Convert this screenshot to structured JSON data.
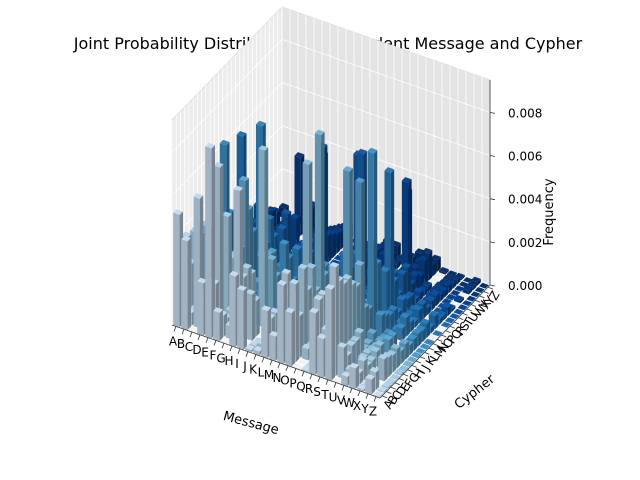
{
  "chart_data": {
    "type": "bar3d",
    "title": "Joint Probability Distribution of dependent Message and Cypher",
    "xlabel": "Message",
    "ylabel": "Cypher",
    "zlabel": "Frequency",
    "x_categories": [
      "A",
      "B",
      "C",
      "D",
      "E",
      "F",
      "G",
      "H",
      "I",
      "J",
      "K",
      "L",
      "M",
      "N",
      "O",
      "P",
      "Q",
      "R",
      "S",
      "T",
      "U",
      "V",
      "W",
      "X",
      "Y",
      "Z"
    ],
    "y_categories": [
      "A",
      "B",
      "C",
      "D",
      "E",
      "F",
      "G",
      "H",
      "I",
      "J",
      "K",
      "L",
      "M",
      "N",
      "O",
      "P",
      "Q",
      "R",
      "S",
      "T",
      "U",
      "V",
      "W",
      "X",
      "Y",
      "Z"
    ],
    "z_ticks": [
      "0.000",
      "0.002",
      "0.004",
      "0.006",
      "0.008"
    ],
    "zlim": [
      0,
      0.0095
    ],
    "colormap": "Blues",
    "bar_values": [
      {
        "message": "A",
        "cypher": "A",
        "value": 0.0052
      },
      {
        "message": "B",
        "cypher": "A",
        "value": 0.0041
      },
      {
        "message": "C",
        "cypher": "B",
        "value": 0.006
      },
      {
        "message": "E",
        "cypher": "A",
        "value": 0.0088
      },
      {
        "message": "E",
        "cypher": "C",
        "value": 0.0075
      },
      {
        "message": "H",
        "cypher": "B",
        "value": 0.007
      },
      {
        "message": "I",
        "cypher": "F",
        "value": 0.0082
      },
      {
        "message": "N",
        "cypher": "G",
        "value": 0.008
      },
      {
        "message": "O",
        "cypher": "H",
        "value": 0.0093
      },
      {
        "message": "R",
        "cypher": "I",
        "value": 0.0078
      },
      {
        "message": "S",
        "cypher": "J",
        "value": 0.0072
      },
      {
        "message": "T",
        "cypher": "K",
        "value": 0.0085
      },
      {
        "message": "A",
        "cypher": "L",
        "value": 0.0062
      },
      {
        "message": "E",
        "cypher": "M",
        "value": 0.0074
      },
      {
        "message": "T",
        "cypher": "O",
        "value": 0.0068
      },
      {
        "message": "A",
        "cypher": "P",
        "value": 0.0058
      },
      {
        "message": "O",
        "cypher": "R",
        "value": 0.0064
      },
      {
        "message": "N",
        "cypher": "S",
        "value": 0.006
      },
      {
        "message": "I",
        "cypher": "T",
        "value": 0.0055
      },
      {
        "message": "S",
        "cypher": "U",
        "value": 0.005
      },
      {
        "message": "H",
        "cypher": "V",
        "value": 0.0046
      },
      {
        "message": "R",
        "cypher": "W",
        "value": 0.004
      },
      {
        "message": "D",
        "cypher": "X",
        "value": 0.0036
      }
    ]
  }
}
